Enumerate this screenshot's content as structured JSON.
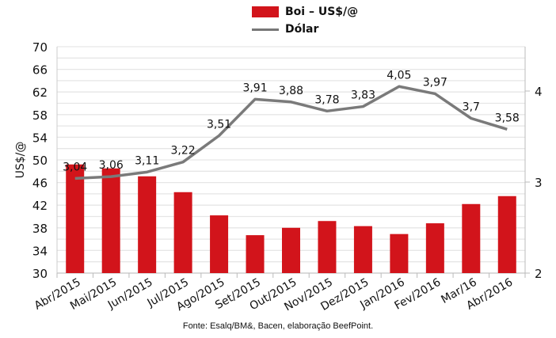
{
  "chart_data": {
    "type": "bar",
    "title": "",
    "categories": [
      "Abr/2015",
      "Mai/2015",
      "Jun/2015",
      "Jul/2015",
      "Ago/2015",
      "Set/2015",
      "Out/2015",
      "Nov/2015",
      "Dez/2015",
      "Jan/2016",
      "Fev/2016",
      "Mar/16",
      "Abr/2016"
    ],
    "series": [
      {
        "name": "Boi – US$/@",
        "type": "bar",
        "axis": "left",
        "color": "#d2141b",
        "values": [
          49.2,
          48.5,
          47.1,
          44.3,
          40.2,
          36.7,
          38.0,
          39.2,
          38.3,
          36.9,
          38.8,
          42.2,
          43.6
        ]
      },
      {
        "name": "Dólar",
        "type": "line",
        "axis": "right",
        "color": "#7a7a7a",
        "values": [
          3.04,
          3.06,
          3.11,
          3.22,
          3.51,
          3.91,
          3.88,
          3.78,
          3.83,
          4.05,
          3.97,
          3.7,
          3.58
        ],
        "labels": [
          "3,04",
          "3,06",
          "3,11",
          "3,22",
          "3,51",
          "3,91",
          "3,88",
          "3,78",
          "3,83",
          "4,05",
          "3,97",
          "3,7",
          "3,58"
        ]
      }
    ],
    "ylabel": "US$/@",
    "ylim": [
      30,
      70
    ],
    "yticks": [
      "30",
      "34",
      "38",
      "42",
      "46",
      "50",
      "54",
      "58",
      "62",
      "66",
      "70"
    ],
    "y2lim": [
      2,
      4.5
    ],
    "y2ticks": [
      "2",
      "3",
      "4"
    ],
    "grid": true,
    "legend_position": "top-center"
  },
  "source": "Fonte: Esalq/BM&, Bacen, elaboração BeefPoint."
}
